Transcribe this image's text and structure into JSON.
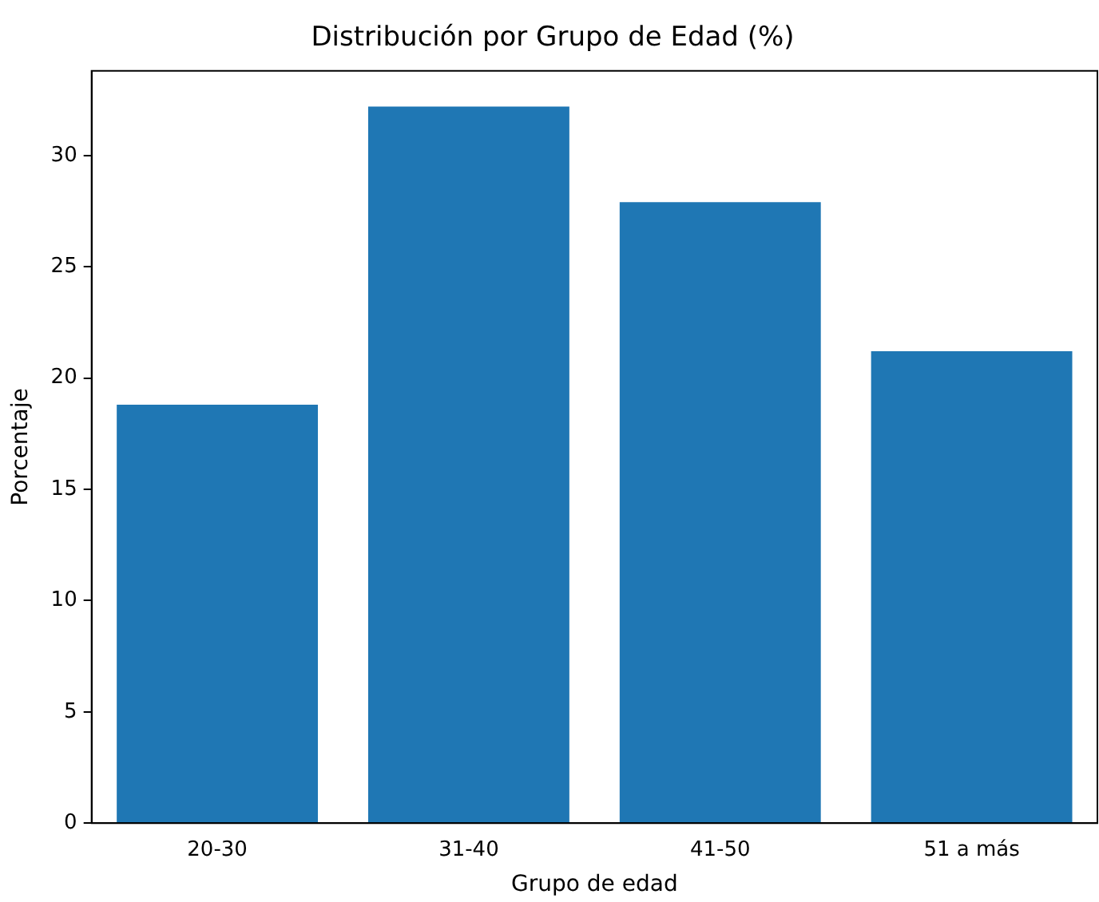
{
  "chart_data": {
    "type": "bar",
    "title": "Distribución por Grupo de Edad (%)",
    "xlabel": "Grupo de edad",
    "ylabel": "Porcentaje",
    "categories": [
      "20-30",
      "31-40",
      "41-50",
      "51 a más"
    ],
    "values": [
      18.8,
      32.2,
      27.9,
      21.2
    ],
    "color": "#1f77b4",
    "ylim": [
      0,
      33.8
    ],
    "yticks": [
      0,
      5,
      10,
      15,
      20,
      25,
      30
    ],
    "grid": false,
    "legend": false
  }
}
